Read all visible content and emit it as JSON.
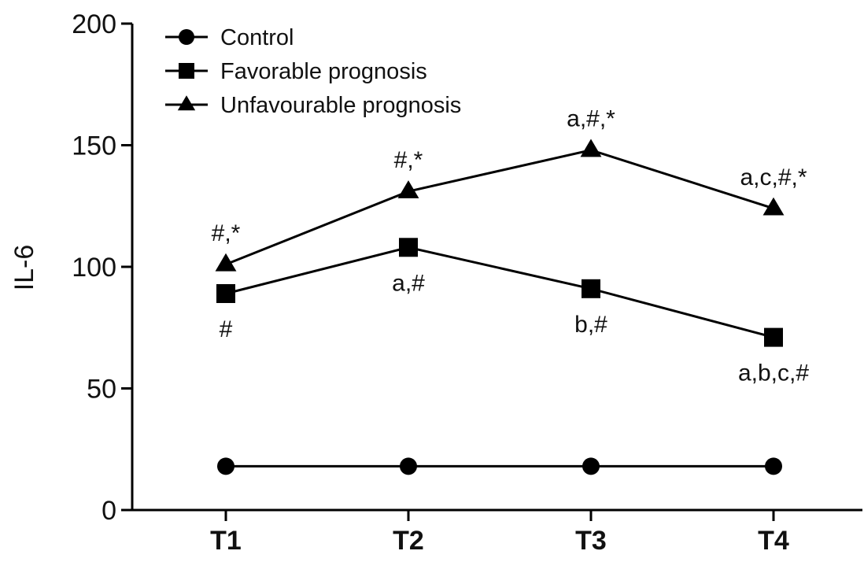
{
  "chart_data": {
    "type": "line",
    "title": "",
    "xlabel": "",
    "ylabel": "IL-6",
    "categories": [
      "T1",
      "T2",
      "T3",
      "T4"
    ],
    "ylim": [
      0,
      200
    ],
    "yticks": [
      0,
      50,
      100,
      150,
      200
    ],
    "grid": false,
    "legend_position": "top-left",
    "series": [
      {
        "name": "Control",
        "marker": "circle",
        "values": [
          18,
          18,
          18,
          18
        ]
      },
      {
        "name": "Favorable prognosis",
        "marker": "square",
        "values": [
          89,
          108,
          91,
          71
        ]
      },
      {
        "name": "Unfavourable prognosis",
        "marker": "triangle",
        "values": [
          101,
          131,
          148,
          124
        ]
      }
    ],
    "annotations": [
      {
        "series": "Favorable prognosis",
        "category": "T1",
        "text": "#",
        "placement": "below"
      },
      {
        "series": "Favorable prognosis",
        "category": "T2",
        "text": "a,#",
        "placement": "below"
      },
      {
        "series": "Favorable prognosis",
        "category": "T3",
        "text": "b,#",
        "placement": "below"
      },
      {
        "series": "Favorable prognosis",
        "category": "T4",
        "text": "a,b,c,#",
        "placement": "below"
      },
      {
        "series": "Unfavourable prognosis",
        "category": "T1",
        "text": "#,*",
        "placement": "above"
      },
      {
        "series": "Unfavourable prognosis",
        "category": "T2",
        "text": "#,*",
        "placement": "above"
      },
      {
        "series": "Unfavourable prognosis",
        "category": "T3",
        "text": "a,#,*",
        "placement": "above"
      },
      {
        "series": "Unfavourable prognosis",
        "category": "T4",
        "text": "a,c,#,*",
        "placement": "above"
      }
    ],
    "colors": {
      "line": "#000000",
      "marker": "#000000"
    }
  }
}
